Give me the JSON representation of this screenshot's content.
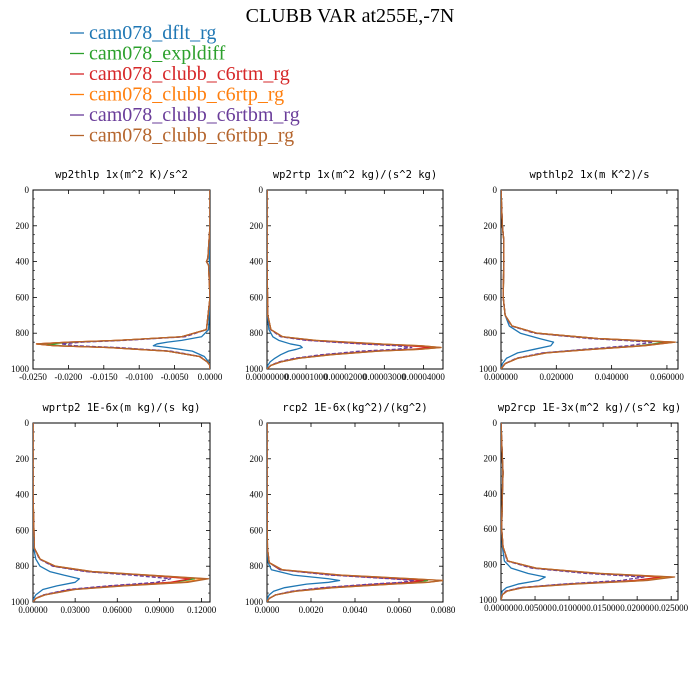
{
  "figure": {
    "title": "CLUBB VAR at255E,-7N"
  },
  "legend": [
    {
      "name": "cam078_dflt_rg",
      "color": "#1f77b4"
    },
    {
      "name": "cam078_expldiff",
      "color": "#2ca02c"
    },
    {
      "name": "cam078_clubb_c6rtm_rg",
      "color": "#d62728"
    },
    {
      "name": "cam078_clubb_c6rtp_rg",
      "color": "#ff7f0e"
    },
    {
      "name": "cam078_clubb_c6rtbm_rg",
      "color": "#6a3d9a"
    },
    {
      "name": "cam078_clubb_c6rtbp_rg",
      "color": "#b5652d"
    }
  ],
  "chart_data": [
    {
      "type": "line",
      "title": "wp2thlp  1x(m^2 K)/s^2",
      "xlim": [
        -0.025,
        0.0
      ],
      "ylim": [
        1000,
        0
      ],
      "xticks": [
        "-0.0250",
        "-0.0200",
        "-0.0150",
        "-0.0100",
        "-0.0050",
        "0.0000"
      ],
      "yticks": [
        "0",
        "200",
        "400",
        "600",
        "800",
        "1000"
      ],
      "y": [
        0,
        200,
        380,
        400,
        420,
        600,
        780,
        820,
        840,
        850,
        860,
        870,
        880,
        900,
        930,
        960,
        980,
        1000
      ],
      "series": [
        {
          "name": "cam078_dflt_rg",
          "values": [
            0,
            0,
            -0.0001,
            -0.0001,
            0,
            0,
            -0.0002,
            -0.0012,
            -0.004,
            -0.006,
            -0.0075,
            -0.008,
            -0.006,
            -0.0025,
            -0.0008,
            -0.0002,
            0,
            0
          ]
        },
        {
          "name": "cam078_expldiff",
          "values": [
            0,
            0,
            -0.0003,
            -0.0005,
            -0.0002,
            0,
            -0.0005,
            -0.004,
            -0.013,
            -0.019,
            -0.023,
            -0.021,
            -0.014,
            -0.006,
            -0.0015,
            -0.0004,
            0,
            0
          ]
        },
        {
          "name": "cam078_clubb_c6rtm_rg",
          "values": [
            0,
            0,
            -0.0003,
            -0.0005,
            -0.0002,
            0,
            -0.0005,
            -0.004,
            -0.013,
            -0.02,
            -0.0245,
            -0.022,
            -0.0145,
            -0.006,
            -0.0015,
            -0.0004,
            0,
            0
          ]
        },
        {
          "name": "cam078_clubb_c6rtp_rg",
          "values": [
            0,
            0,
            -0.0003,
            -0.0005,
            -0.0002,
            0,
            -0.0005,
            -0.004,
            -0.013,
            -0.02,
            -0.0245,
            -0.022,
            -0.0145,
            -0.006,
            -0.0015,
            -0.0004,
            0,
            0
          ]
        },
        {
          "name": "cam078_clubb_c6rtbm_rg",
          "values": [
            0,
            0,
            -0.0003,
            -0.0005,
            -0.0002,
            0,
            -0.0005,
            -0.0035,
            -0.012,
            -0.018,
            -0.021,
            -0.019,
            -0.013,
            -0.0055,
            -0.0014,
            -0.0004,
            0,
            0
          ]
        },
        {
          "name": "cam078_clubb_c6rtbp_rg",
          "values": [
            0,
            0,
            -0.0003,
            -0.0005,
            -0.0002,
            0,
            -0.0005,
            -0.004,
            -0.013,
            -0.02,
            -0.0245,
            -0.022,
            -0.0145,
            -0.006,
            -0.0015,
            -0.0004,
            0,
            0
          ]
        }
      ]
    },
    {
      "type": "line",
      "title": "wp2rtp  1x(m^2 kg)/(s^2 kg)",
      "xlim": [
        0.0,
        4.5e-05
      ],
      "ylim": [
        1000,
        0
      ],
      "xticks": [
        "0.00000000",
        "0.00001000",
        "0.00002000",
        "0.00003000",
        "0.00004000"
      ],
      "yticks": [
        "0",
        "200",
        "400",
        "600",
        "800",
        "1000"
      ],
      "y": [
        0,
        400,
        700,
        780,
        820,
        840,
        860,
        870,
        880,
        890,
        900,
        920,
        940,
        960,
        980,
        1000
      ],
      "series": [
        {
          "name": "cam078_dflt_rg",
          "values": [
            0,
            0,
            1e-07,
            5e-07,
            1.5e-06,
            3e-06,
            6e-06,
            8.5e-06,
            9e-06,
            7.5e-06,
            5.5e-06,
            3.5e-06,
            2e-06,
            8e-07,
            2e-07,
            0
          ]
        },
        {
          "name": "cam078_expldiff",
          "values": [
            0,
            0,
            2e-07,
            1e-06,
            4e-06,
            1.2e-05,
            2.8e-05,
            3.8e-05,
            4.3e-05,
            3.8e-05,
            2.8e-05,
            1.6e-05,
            8e-06,
            3.5e-06,
            1e-06,
            0
          ]
        },
        {
          "name": "cam078_clubb_c6rtm_rg",
          "values": [
            0,
            0,
            2e-07,
            1e-06,
            4e-06,
            1.1e-05,
            2.6e-05,
            3.6e-05,
            4.2e-05,
            3.7e-05,
            2.7e-05,
            1.55e-05,
            7.8e-06,
            3.4e-06,
            1e-06,
            0
          ]
        },
        {
          "name": "cam078_clubb_c6rtp_rg",
          "values": [
            0,
            0,
            2e-07,
            1e-06,
            4e-06,
            1.25e-05,
            2.9e-05,
            3.95e-05,
            4.45e-05,
            3.9e-05,
            2.85e-05,
            1.65e-05,
            8.2e-06,
            3.6e-06,
            1e-06,
            0
          ]
        },
        {
          "name": "cam078_clubb_c6rtbm_rg",
          "values": [
            0,
            0,
            2e-07,
            9e-07,
            3.5e-06,
            1e-05,
            2.4e-05,
            3.3e-05,
            3.7e-05,
            3.3e-05,
            2.4e-05,
            1.4e-05,
            7e-06,
            3e-06,
            9e-07,
            0
          ]
        },
        {
          "name": "cam078_clubb_c6rtbp_rg",
          "values": [
            0,
            0,
            2e-07,
            1e-06,
            4e-06,
            1.25e-05,
            2.9e-05,
            3.95e-05,
            4.45e-05,
            3.9e-05,
            2.85e-05,
            1.65e-05,
            8.2e-06,
            3.6e-06,
            1e-06,
            0
          ]
        }
      ]
    },
    {
      "type": "line",
      "title": "wpthlp2  1x(m K^2)/s",
      "xlim": [
        0.0,
        0.064
      ],
      "ylim": [
        1000,
        0
      ],
      "xticks": [
        "0.000000",
        "0.020000",
        "0.040000",
        "0.060000"
      ],
      "yticks": [
        "0",
        "200",
        "400",
        "600",
        "800",
        "1000"
      ],
      "y": [
        0,
        200,
        280,
        400,
        600,
        700,
        760,
        800,
        830,
        850,
        870,
        890,
        910,
        940,
        970,
        1000
      ],
      "series": [
        {
          "name": "cam078_dflt_rg",
          "values": [
            0,
            0.0005,
            0.001,
            0.001,
            0.0008,
            0.0015,
            0.003,
            0.007,
            0.014,
            0.019,
            0.018,
            0.012,
            0.006,
            0.002,
            0.0005,
            0
          ]
        },
        {
          "name": "cam078_expldiff",
          "values": [
            0,
            0.0005,
            0.001,
            0.001,
            0.0008,
            0.0015,
            0.004,
            0.013,
            0.035,
            0.06,
            0.05,
            0.032,
            0.016,
            0.006,
            0.0015,
            0
          ]
        },
        {
          "name": "cam078_clubb_c6rtm_rg",
          "values": [
            0,
            0.0005,
            0.001,
            0.001,
            0.0008,
            0.0015,
            0.004,
            0.013,
            0.035,
            0.062,
            0.051,
            0.033,
            0.016,
            0.006,
            0.0015,
            0
          ]
        },
        {
          "name": "cam078_clubb_c6rtp_rg",
          "values": [
            0,
            0.0005,
            0.001,
            0.001,
            0.0008,
            0.0015,
            0.004,
            0.013,
            0.035,
            0.063,
            0.052,
            0.033,
            0.0165,
            0.006,
            0.0015,
            0
          ]
        },
        {
          "name": "cam078_clubb_c6rtbm_rg",
          "values": [
            0,
            0.0005,
            0.001,
            0.001,
            0.0008,
            0.0015,
            0.0038,
            0.012,
            0.032,
            0.055,
            0.046,
            0.03,
            0.015,
            0.0055,
            0.0014,
            0
          ]
        },
        {
          "name": "cam078_clubb_c6rtbp_rg",
          "values": [
            0,
            0.0005,
            0.001,
            0.001,
            0.0008,
            0.0015,
            0.004,
            0.013,
            0.035,
            0.063,
            0.052,
            0.033,
            0.0165,
            0.006,
            0.0015,
            0
          ]
        }
      ]
    },
    {
      "type": "line",
      "title": "wprtp2  1E-6x(m kg)/(s kg)",
      "xlim": [
        0.0,
        0.126
      ],
      "ylim": [
        1000,
        0
      ],
      "xticks": [
        "0.00000",
        "0.03000",
        "0.06000",
        "0.09000",
        "0.12000"
      ],
      "yticks": [
        "0",
        "200",
        "400",
        "600",
        "800",
        "1000"
      ],
      "y": [
        0,
        400,
        700,
        760,
        800,
        830,
        850,
        870,
        890,
        910,
        930,
        960,
        980,
        1000
      ],
      "series": [
        {
          "name": "cam078_dflt_rg",
          "values": [
            0,
            0,
            0.0005,
            0.002,
            0.005,
            0.012,
            0.022,
            0.033,
            0.03,
            0.017,
            0.007,
            0.002,
            0.0005,
            0
          ]
        },
        {
          "name": "cam078_expldiff",
          "values": [
            0,
            0,
            0.001,
            0.005,
            0.015,
            0.04,
            0.08,
            0.115,
            0.1,
            0.06,
            0.028,
            0.008,
            0.002,
            0
          ]
        },
        {
          "name": "cam078_clubb_c6rtm_rg",
          "values": [
            0,
            0,
            0.001,
            0.005,
            0.015,
            0.04,
            0.08,
            0.112,
            0.098,
            0.058,
            0.027,
            0.008,
            0.002,
            0
          ]
        },
        {
          "name": "cam078_clubb_c6rtp_rg",
          "values": [
            0,
            0,
            0.001,
            0.005,
            0.016,
            0.042,
            0.083,
            0.122,
            0.107,
            0.064,
            0.029,
            0.0085,
            0.002,
            0
          ]
        },
        {
          "name": "cam078_clubb_c6rtbm_rg",
          "values": [
            0,
            0,
            0.001,
            0.0045,
            0.014,
            0.037,
            0.07,
            0.098,
            0.088,
            0.053,
            0.025,
            0.0075,
            0.0018,
            0
          ]
        },
        {
          "name": "cam078_clubb_c6rtbp_rg",
          "values": [
            0,
            0,
            0.001,
            0.005,
            0.016,
            0.042,
            0.083,
            0.125,
            0.11,
            0.065,
            0.03,
            0.0087,
            0.002,
            0
          ]
        }
      ]
    },
    {
      "type": "line",
      "title": "rcp2  1E-6x(kg^2)/(kg^2)",
      "xlim": [
        0.0,
        0.008
      ],
      "ylim": [
        1000,
        0
      ],
      "xticks": [
        "0.0000",
        "0.0020",
        "0.0040",
        "0.0060",
        "0.0080"
      ],
      "yticks": [
        "0",
        "200",
        "400",
        "600",
        "800",
        "1000"
      ],
      "y": [
        0,
        400,
        700,
        780,
        820,
        850,
        870,
        880,
        890,
        900,
        920,
        940,
        960,
        980,
        1000
      ],
      "series": [
        {
          "name": "cam078_dflt_rg",
          "values": [
            0,
            0,
            1e-05,
            5e-05,
            0.0002,
            0.0012,
            0.0028,
            0.0033,
            0.0028,
            0.0018,
            0.0008,
            0.0003,
            0.0001,
            2e-05,
            0
          ]
        },
        {
          "name": "cam078_expldiff",
          "values": [
            0,
            0,
            2e-05,
            0.0001,
            0.0006,
            0.0032,
            0.006,
            0.0073,
            0.0067,
            0.0052,
            0.0028,
            0.0012,
            0.0004,
            0.0001,
            0
          ]
        },
        {
          "name": "cam078_clubb_c6rtm_rg",
          "values": [
            0,
            0,
            2e-05,
            0.0001,
            0.0006,
            0.0031,
            0.0058,
            0.0071,
            0.0065,
            0.005,
            0.0027,
            0.0012,
            0.0004,
            0.0001,
            0
          ]
        },
        {
          "name": "cam078_clubb_c6rtp_rg",
          "values": [
            0,
            0,
            2e-05,
            0.0001,
            0.0007,
            0.0034,
            0.0066,
            0.008,
            0.0073,
            0.0057,
            0.003,
            0.0013,
            0.0004,
            0.0001,
            0
          ]
        },
        {
          "name": "cam078_clubb_c6rtbm_rg",
          "values": [
            0,
            0,
            2e-05,
            0.0001,
            0.0006,
            0.0029,
            0.0056,
            0.0067,
            0.0061,
            0.0047,
            0.0025,
            0.0011,
            0.0004,
            0.0001,
            0
          ]
        },
        {
          "name": "cam078_clubb_c6rtbp_rg",
          "values": [
            0,
            0,
            2e-05,
            0.0001,
            0.0007,
            0.0034,
            0.0066,
            0.008,
            0.0073,
            0.0057,
            0.003,
            0.0013,
            0.0004,
            0.0001,
            0
          ]
        }
      ]
    },
    {
      "type": "line",
      "title": "wp2rcp  1E-3x(m^2 kg)/(s^2 kg)",
      "xlim": [
        0.0,
        0.026
      ],
      "ylim": [
        1000,
        0
      ],
      "xticks": [
        "0.000000",
        "0.005000",
        "0.010000",
        "0.015000",
        "0.020000",
        "0.025000"
      ],
      "yticks": [
        "0",
        "200",
        "400",
        "600",
        "800",
        "1000"
      ],
      "y": [
        0,
        200,
        280,
        400,
        600,
        700,
        780,
        820,
        850,
        870,
        890,
        910,
        930,
        950,
        970,
        1000
      ],
      "series": [
        {
          "name": "cam078_dflt_rg",
          "values": [
            0,
            0.0002,
            0.0003,
            0.0002,
            0.0001,
            0.0002,
            0.0005,
            0.0015,
            0.004,
            0.0065,
            0.0055,
            0.0025,
            0.0008,
            0.0002,
            5e-05,
            0
          ]
        },
        {
          "name": "cam078_expldiff",
          "values": [
            0,
            0.0002,
            0.0003,
            0.0002,
            0.0001,
            0.0003,
            0.001,
            0.005,
            0.014,
            0.024,
            0.02,
            0.01,
            0.003,
            0.0008,
            0.0002,
            0
          ]
        },
        {
          "name": "cam078_clubb_c6rtm_rg",
          "values": [
            0,
            0.0002,
            0.0003,
            0.0002,
            0.0001,
            0.0003,
            0.001,
            0.005,
            0.014,
            0.0235,
            0.0195,
            0.0098,
            0.003,
            0.0008,
            0.0002,
            0
          ]
        },
        {
          "name": "cam078_clubb_c6rtp_rg",
          "values": [
            0,
            0.0002,
            0.0003,
            0.0002,
            0.0001,
            0.0003,
            0.001,
            0.0052,
            0.0145,
            0.025,
            0.021,
            0.0105,
            0.0032,
            0.0009,
            0.0002,
            0
          ]
        },
        {
          "name": "cam078_clubb_c6rtbm_rg",
          "values": [
            0,
            0.0002,
            0.0003,
            0.0002,
            0.0001,
            0.0003,
            0.0009,
            0.0045,
            0.0125,
            0.021,
            0.0175,
            0.009,
            0.0028,
            0.0007,
            0.0002,
            0
          ]
        },
        {
          "name": "cam078_clubb_c6rtbp_rg",
          "values": [
            0,
            0.0002,
            0.0003,
            0.0002,
            0.0001,
            0.0003,
            0.001,
            0.0052,
            0.0145,
            0.0255,
            0.0215,
            0.0107,
            0.0033,
            0.0009,
            0.0002,
            0
          ]
        }
      ]
    }
  ]
}
